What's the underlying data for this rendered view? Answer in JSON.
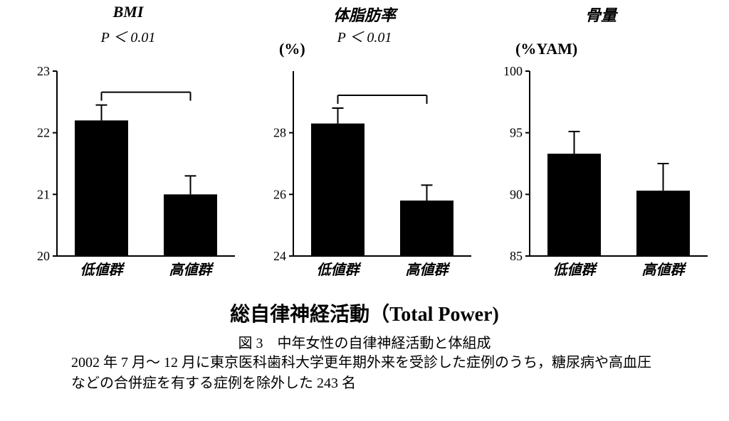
{
  "colors": {
    "bar_fill": "#000000",
    "axis": "#000000",
    "background": "#ffffff"
  },
  "panels": [
    {
      "id": "bmi",
      "title": "BMI",
      "p_label": "P ＜ 0.01",
      "ylabel": "",
      "ylim": [
        20,
        23
      ],
      "yticks": [
        20,
        21,
        22,
        23
      ],
      "categories": [
        "低値群",
        "高値群"
      ],
      "values": [
        22.2,
        21.0
      ],
      "errors": [
        0.25,
        0.3
      ],
      "bar_width": 0.6,
      "compare_bracket": true
    },
    {
      "id": "bodyfat",
      "title": "体脂肪率",
      "p_label": "P ＜ 0.01",
      "ylabel": "(%)",
      "ylim": [
        24,
        30
      ],
      "yticks": [
        24,
        26,
        28
      ],
      "categories": [
        "低値群",
        "高値群"
      ],
      "values": [
        28.3,
        25.8
      ],
      "errors": [
        0.5,
        0.5
      ],
      "bar_width": 0.6,
      "compare_bracket": true
    },
    {
      "id": "bonemass",
      "title": "骨量",
      "p_label": "",
      "ylabel": "(%YAM)",
      "ylim": [
        85,
        100
      ],
      "yticks": [
        85,
        90,
        95,
        100
      ],
      "categories": [
        "低値群",
        "高値群"
      ],
      "values": [
        93.3,
        90.3
      ],
      "errors": [
        1.8,
        2.2
      ],
      "bar_width": 0.6,
      "compare_bracket": false
    }
  ],
  "main_xaxis_label": "総自律神経活動（Total Power)",
  "figure_caption": "図 3　中年女性の自律神経活動と体組成",
  "figure_description": "2002 年 7 月～ 12 月に東京医科歯科大学更年期外来を受診した症例のうち，糖尿病や高血圧などの合併症を有する症例を除外した 243 名",
  "fonts": {
    "title_size_pt": 22,
    "p_size_pt": 20,
    "ylabel_size_pt": 22,
    "tick_size_pt": 18,
    "xcat_size_pt": 20,
    "main_xaxis_size_pt": 28,
    "caption_size_pt": 20,
    "desc_size_pt": 20
  }
}
